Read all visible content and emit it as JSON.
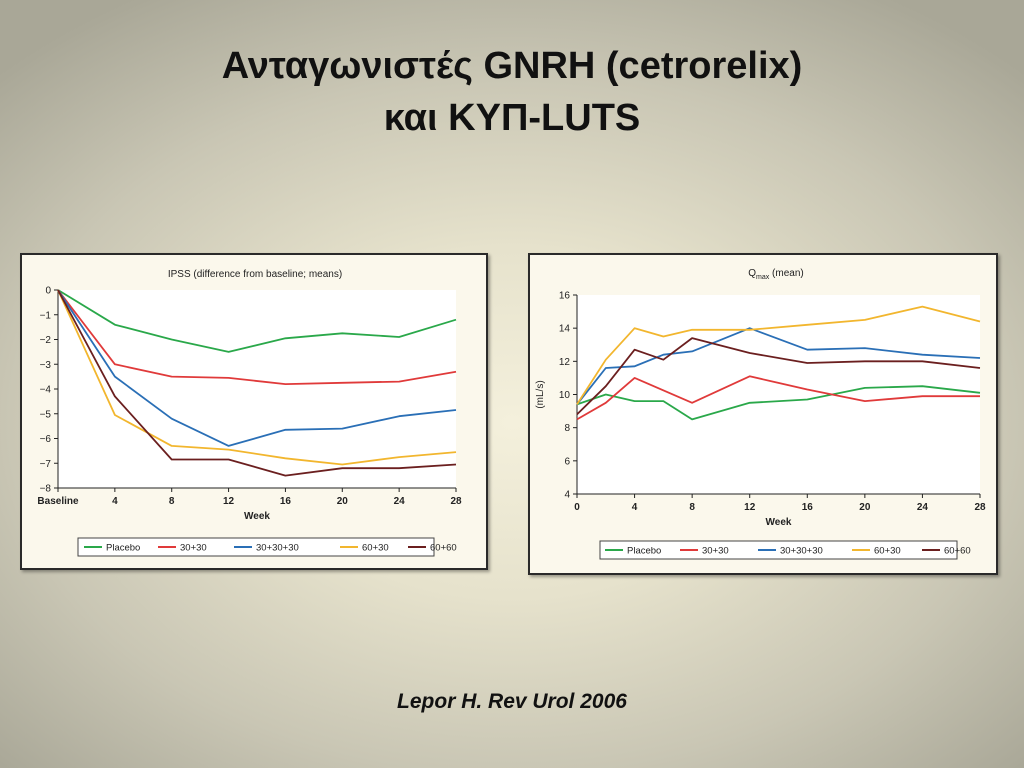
{
  "slide": {
    "title_line1": "Ανταγωνιστές GNRH (cetrorelix)",
    "title_line2": "και ΚΥΠ-LUTS",
    "citation": "Lepor H. Rev Urol 2006"
  },
  "chart_data": [
    {
      "type": "line",
      "title": "IPSS (difference from baseline; means)",
      "xlabel": "Week",
      "ylabel": "",
      "x": [
        0,
        4,
        8,
        12,
        16,
        20,
        24,
        28
      ],
      "x_tick_labels": [
        "Baseline",
        "4",
        "8",
        "12",
        "16",
        "20",
        "24",
        "28"
      ],
      "xlim": [
        0,
        28
      ],
      "ylim": [
        -8,
        0
      ],
      "y_ticks": [
        0,
        -1,
        -2,
        -3,
        -4,
        -5,
        -6,
        -7,
        -8
      ],
      "y_tick_labels": [
        "0",
        "−1",
        "−2",
        "−3",
        "−4",
        "−5",
        "−6",
        "−7",
        "−8"
      ],
      "grid": false,
      "legend_placement": "bottom",
      "series": [
        {
          "name": "Placebo",
          "color": "#2aa84a",
          "values": [
            0,
            -1.4,
            -2.0,
            -2.5,
            -1.95,
            -1.75,
            -1.9,
            -1.2
          ]
        },
        {
          "name": "30+30",
          "color": "#e03a3a",
          "values": [
            0,
            -3.0,
            -3.5,
            -3.55,
            -3.8,
            -3.75,
            -3.7,
            -3.3
          ]
        },
        {
          "name": "30+30+30",
          "color": "#2a6fb6",
          "values": [
            0,
            -3.5,
            -5.2,
            -6.3,
            -5.65,
            -5.6,
            -5.1,
            -4.85
          ]
        },
        {
          "name": "60+30",
          "color": "#f2b62e",
          "values": [
            0,
            -5.05,
            -6.3,
            -6.45,
            -6.8,
            -7.05,
            -6.75,
            -6.55
          ]
        },
        {
          "name": "60+60",
          "color": "#6b1f1f",
          "values": [
            0,
            -4.3,
            -6.85,
            -6.85,
            -7.5,
            -7.2,
            -7.2,
            -7.05
          ]
        }
      ]
    },
    {
      "type": "line",
      "title": "Q",
      "title_sub": "max",
      "title_suffix": " (mean)",
      "xlabel": "Week",
      "ylabel": "(mL/s)",
      "xlim": [
        0,
        28
      ],
      "x_ticks": [
        0,
        4,
        8,
        12,
        16,
        20,
        24,
        28
      ],
      "x_tick_labels": [
        "0",
        "4",
        "8",
        "12",
        "16",
        "20",
        "24",
        "28"
      ],
      "ylim": [
        4,
        16
      ],
      "y_ticks": [
        4,
        6,
        8,
        10,
        12,
        14,
        16
      ],
      "y_tick_labels": [
        "4",
        "6",
        "8",
        "10",
        "12",
        "14",
        "16"
      ],
      "grid": false,
      "legend_placement": "bottom",
      "series": [
        {
          "name": "Placebo",
          "color": "#2aa84a",
          "x": [
            0,
            2,
            4,
            6,
            8,
            12,
            16,
            20,
            24,
            28
          ],
          "values": [
            9.4,
            10.0,
            9.6,
            9.6,
            8.5,
            9.5,
            9.7,
            10.4,
            10.5,
            10.1
          ]
        },
        {
          "name": "30+30",
          "color": "#e03a3a",
          "x": [
            0,
            2,
            4,
            8,
            12,
            16,
            20,
            24,
            28
          ],
          "values": [
            8.5,
            9.5,
            11.0,
            9.5,
            11.1,
            10.3,
            9.6,
            9.9,
            9.9
          ]
        },
        {
          "name": "30+30+30",
          "color": "#2a6fb6",
          "x": [
            0,
            2,
            4,
            6,
            8,
            12,
            16,
            20,
            24,
            28
          ],
          "values": [
            9.4,
            11.6,
            11.7,
            12.4,
            12.6,
            14.0,
            12.7,
            12.8,
            12.4,
            12.2
          ]
        },
        {
          "name": "60+30",
          "color": "#f2b62e",
          "x": [
            0,
            2,
            4,
            6,
            8,
            12,
            16,
            20,
            24,
            28
          ],
          "values": [
            9.4,
            12.1,
            14.0,
            13.5,
            13.9,
            13.9,
            14.2,
            14.5,
            15.3,
            14.4
          ]
        },
        {
          "name": "60+60",
          "color": "#6b1f1f",
          "x": [
            0,
            2,
            4,
            6,
            8,
            12,
            16,
            20,
            24,
            28
          ],
          "values": [
            8.8,
            10.5,
            12.7,
            12.1,
            13.4,
            12.5,
            11.9,
            12.0,
            12.0,
            11.6
          ]
        }
      ]
    }
  ]
}
